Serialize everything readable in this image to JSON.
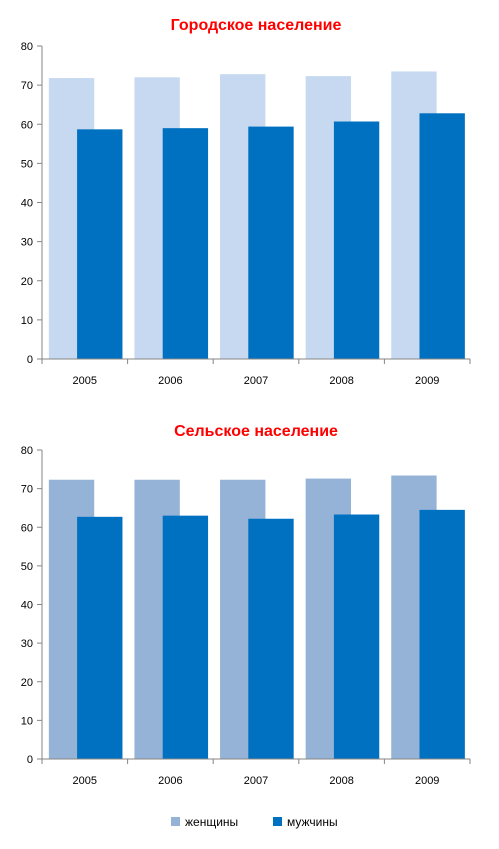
{
  "colors": {
    "title": "#ff0000",
    "axis": "#868686",
    "women_top": "#c6d9f1",
    "women_bottom": "#95b3d7",
    "men": "#0070c0"
  },
  "legend": {
    "items": [
      {
        "label": "женщины",
        "color": "#95b3d7"
      },
      {
        "label": "мужчины",
        "color": "#0070c0"
      }
    ]
  },
  "chart_data": [
    {
      "type": "bar",
      "title": "Городское население",
      "categories": [
        "2005",
        "2006",
        "2007",
        "2008",
        "2009"
      ],
      "ylim": [
        0,
        80
      ],
      "yticks": [
        0,
        10,
        20,
        30,
        40,
        50,
        60,
        70,
        80
      ],
      "grid": false,
      "series": [
        {
          "name": "женщины",
          "values": [
            71.8,
            72.0,
            72.8,
            72.3,
            73.5
          ]
        },
        {
          "name": "мужчины",
          "values": [
            58.7,
            59.0,
            59.4,
            60.7,
            62.8
          ]
        }
      ]
    },
    {
      "type": "bar",
      "title": "Сельское население",
      "categories": [
        "2005",
        "2006",
        "2007",
        "2008",
        "2009"
      ],
      "ylim": [
        0,
        80
      ],
      "yticks": [
        0,
        10,
        20,
        30,
        40,
        50,
        60,
        70,
        80
      ],
      "grid": false,
      "legend_position": "bottom",
      "series": [
        {
          "name": "женщины",
          "values": [
            72.3,
            72.3,
            72.3,
            72.6,
            73.4
          ]
        },
        {
          "name": "мужчины",
          "values": [
            62.7,
            63.0,
            62.2,
            63.3,
            64.5
          ]
        }
      ]
    }
  ]
}
